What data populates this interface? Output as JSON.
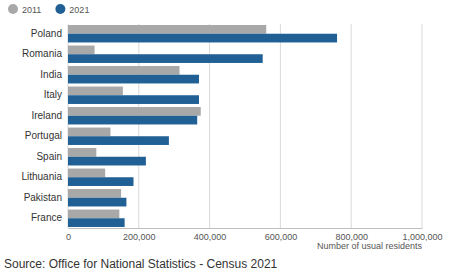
{
  "chart_data": {
    "type": "bar",
    "orientation": "horizontal",
    "categories": [
      "Poland",
      "Romania",
      "India",
      "Italy",
      "Ireland",
      "Portugal",
      "Spain",
      "Lithuania",
      "Pakistan",
      "France"
    ],
    "series": [
      {
        "name": "2011",
        "color": "#a8a8a8",
        "values": [
          560000,
          75000,
          315000,
          155000,
          375000,
          120000,
          80000,
          105000,
          150000,
          145000
        ]
      },
      {
        "name": "2021",
        "color": "#206095",
        "values": [
          760000,
          550000,
          370000,
          370000,
          365000,
          285000,
          220000,
          185000,
          165000,
          160000
        ]
      }
    ],
    "x_label": "Number of usual residents",
    "source": "Source: Office for National Statistics - Census 2021",
    "xlim": [
      0,
      1000000
    ],
    "xticks": [
      0,
      {
        "value": 200000,
        "label": "200,000"
      },
      {
        "value": 400000,
        "label": "400,000"
      },
      {
        "value": 600000,
        "label": "600,000"
      },
      {
        "value": 800000,
        "label": "800,000"
      },
      {
        "value": 1000000,
        "label": "1,000,000"
      }
    ],
    "grid": true,
    "legend": "top-left"
  }
}
